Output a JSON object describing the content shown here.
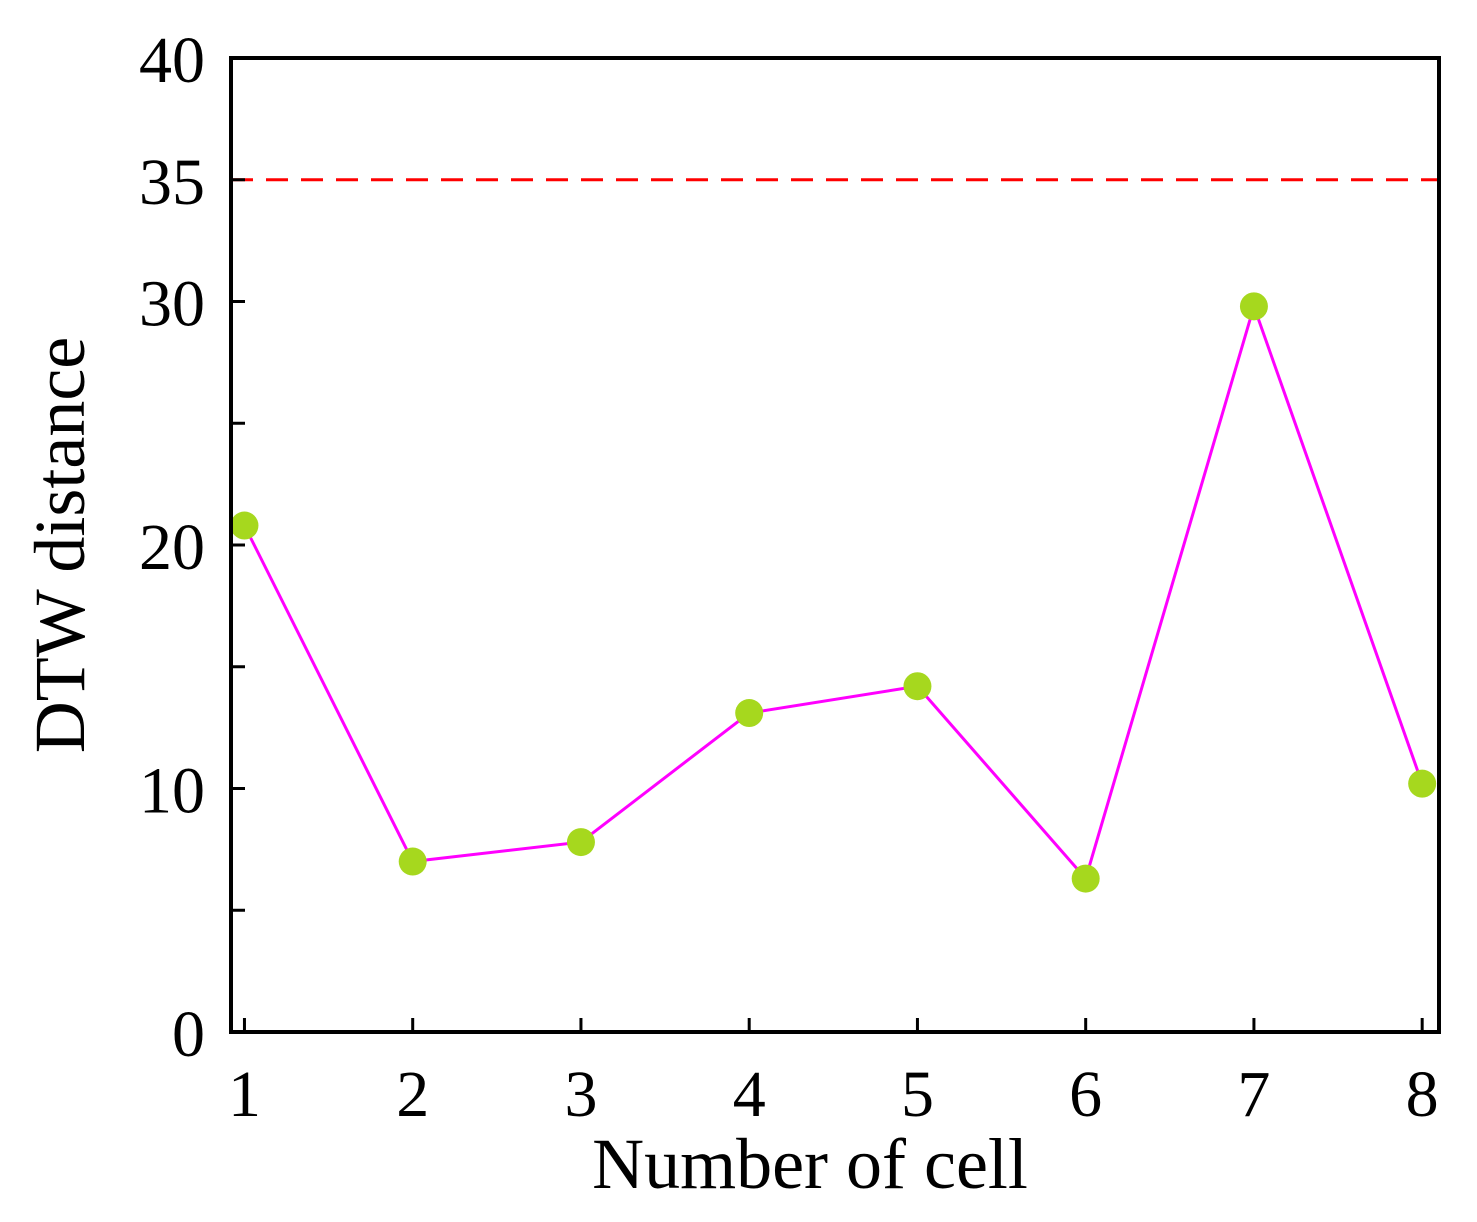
{
  "chart_data": {
    "type": "line",
    "title": "",
    "xlabel": "Number of cell",
    "ylabel": "DTW distance",
    "categories": [
      1,
      2,
      3,
      4,
      5,
      6,
      7,
      8
    ],
    "x_tick_labels": [
      "1",
      "2",
      "3",
      "4",
      "5",
      "6",
      "7",
      "8"
    ],
    "xlim": [
      0.92,
      8.1
    ],
    "ylim": [
      0,
      40
    ],
    "y_tick_labels": [
      "0",
      "10",
      "20",
      "30",
      "35",
      "40"
    ],
    "y_ticks_labeled": [
      0,
      10,
      20,
      30,
      35,
      40
    ],
    "y_ticks_minor": [
      5,
      15,
      25
    ],
    "series": [
      {
        "name": "DTW distance",
        "x": [
          1,
          2,
          3,
          4,
          5,
          6,
          7,
          8
        ],
        "values": [
          20.8,
          7.0,
          7.8,
          13.1,
          14.2,
          6.3,
          29.8,
          10.2
        ],
        "line_color": "#ff00ff",
        "marker_color": "#a6d81e"
      }
    ],
    "threshold": {
      "value": 35,
      "color": "#ff0000",
      "style": "dashed"
    },
    "grid": false,
    "legend": "none"
  }
}
